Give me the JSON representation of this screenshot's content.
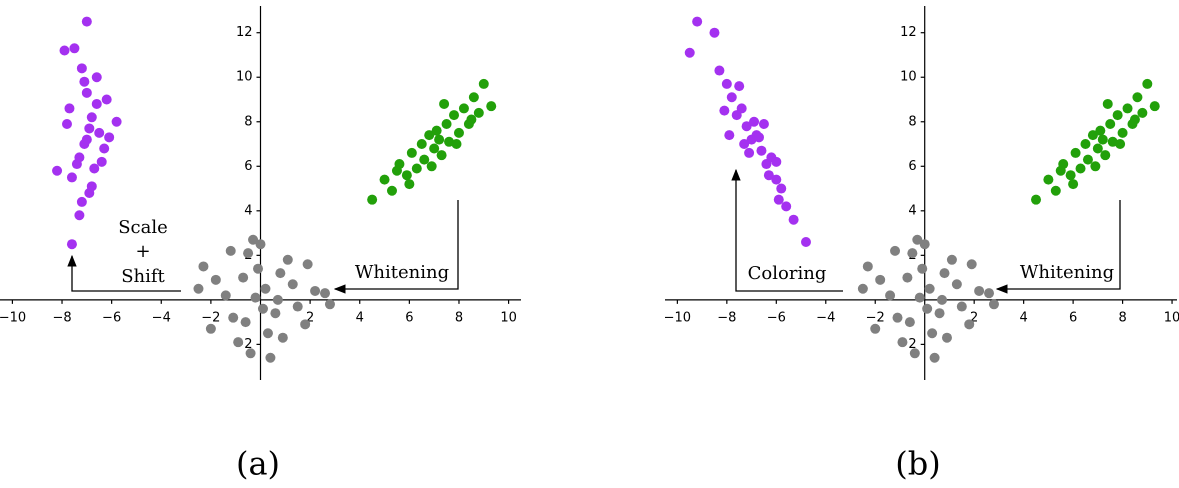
{
  "chart_data": [
    {
      "type": "scatter",
      "xlim": [
        -10.5,
        10.5
      ],
      "ylim": [
        -3.6,
        13.2
      ],
      "xticks": [
        {
          "value": -10,
          "label": "−10"
        },
        {
          "value": -8,
          "label": "−8"
        },
        {
          "value": -6,
          "label": "−6"
        },
        {
          "value": -4,
          "label": "−4"
        },
        {
          "value": -2,
          "label": "−2"
        },
        2,
        4,
        6,
        8,
        10
      ],
      "yticks": [
        {
          "value": -2,
          "label": "−2"
        },
        2,
        4,
        6,
        8,
        10,
        12
      ],
      "series": [
        {
          "color": "#a431f0",
          "x": [
            -7.1,
            -6.8,
            -7.4,
            -6.5,
            -7.0,
            -7.6,
            -6.3,
            -7.2,
            -6.9,
            -7.8,
            -6.6,
            -7.3,
            -6.1,
            -7.0,
            -7.5,
            -6.7,
            -8.2,
            -5.8,
            -7.1,
            -6.4,
            -7.7,
            -6.9,
            -7.2,
            -6.6,
            -7.6,
            -7.3,
            -6.2,
            -7.9,
            -7.0,
            -6.8
          ],
          "y": [
            7.0,
            8.2,
            6.1,
            7.5,
            9.3,
            5.5,
            6.8,
            10.4,
            4.8,
            7.9,
            8.8,
            6.4,
            7.3,
            12.5,
            11.3,
            5.9,
            5.8,
            8.0,
            9.8,
            6.2,
            8.6,
            7.7,
            4.4,
            10.0,
            2.5,
            3.8,
            9.0,
            11.2,
            7.2,
            5.1
          ]
        },
        {
          "color": "#22a00a",
          "x": [
            4.5,
            5.0,
            5.3,
            5.6,
            5.9,
            6.1,
            6.3,
            6.5,
            6.6,
            6.8,
            7.0,
            7.1,
            7.3,
            7.5,
            7.6,
            7.8,
            8.0,
            8.2,
            8.4,
            8.6,
            8.8,
            9.0,
            9.3,
            6.0,
            7.2,
            7.9,
            5.5,
            8.5,
            6.9,
            7.4
          ],
          "y": [
            4.5,
            5.4,
            4.9,
            6.1,
            5.6,
            6.6,
            5.9,
            7.0,
            6.3,
            7.4,
            6.8,
            7.6,
            6.5,
            7.9,
            7.1,
            8.3,
            7.5,
            8.6,
            7.9,
            9.1,
            8.4,
            9.7,
            8.7,
            5.2,
            7.2,
            7.0,
            5.8,
            8.1,
            6.0,
            8.8
          ]
        },
        {
          "color": "#808080",
          "x": [
            0.2,
            -1.1,
            0.8,
            -0.5,
            1.5,
            -1.8,
            0.3,
            -0.2,
            1.1,
            -0.9,
            2.2,
            -2.3,
            0.6,
            -0.4,
            1.8,
            -1.4,
            0.0,
            0.9,
            -0.7,
            2.6,
            -2.0,
            0.4,
            -0.1,
            1.3,
            -1.2,
            0.7,
            -0.6,
            1.9,
            -2.5,
            0.1,
            -0.3,
            2.8
          ],
          "y": [
            0.5,
            -0.8,
            1.2,
            2.1,
            -0.3,
            0.9,
            -1.5,
            0.1,
            1.8,
            -1.9,
            0.4,
            1.5,
            -0.6,
            -2.4,
            -1.1,
            0.2,
            2.5,
            -1.7,
            1.0,
            0.3,
            -1.3,
            -2.6,
            1.4,
            0.7,
            2.2,
            0.0,
            -1.0,
            1.6,
            0.5,
            -0.4,
            2.7,
            -0.2
          ]
        }
      ],
      "annotations": [
        "Scale",
        "+",
        "Shift",
        "Whitening"
      ],
      "caption": "(a)"
    },
    {
      "type": "scatter",
      "xlim": [
        -10.5,
        10.2
      ],
      "ylim": [
        -3.6,
        13.2
      ],
      "xticks": [
        {
          "value": -10,
          "label": "−10"
        },
        {
          "value": -8,
          "label": "−8"
        },
        {
          "value": -6,
          "label": "−6"
        },
        {
          "value": -4,
          "label": "−4"
        },
        {
          "value": -2,
          "label": "−2"
        },
        2,
        4,
        6,
        8,
        10
      ],
      "yticks": [
        {
          "value": -2,
          "label": "−2"
        },
        2,
        4,
        6,
        8,
        10,
        12
      ],
      "series": [
        {
          "color": "#a431f0",
          "x": [
            -9.2,
            -9.5,
            -8.5,
            -8.3,
            -8.0,
            -7.8,
            -7.6,
            -7.4,
            -7.2,
            -7.0,
            -6.8,
            -6.6,
            -6.4,
            -6.2,
            -6.0,
            -5.8,
            -5.6,
            -5.3,
            -7.5,
            -7.1,
            -6.5,
            -8.1,
            -6.9,
            -6.3,
            -7.9,
            -6.0,
            -5.9,
            -4.8,
            -7.3,
            -6.7
          ],
          "y": [
            12.5,
            11.1,
            12.0,
            10.3,
            9.7,
            9.1,
            8.3,
            8.6,
            7.8,
            7.2,
            7.4,
            6.7,
            6.1,
            6.4,
            5.4,
            5.0,
            4.2,
            3.6,
            9.6,
            6.6,
            7.9,
            8.5,
            8.0,
            5.6,
            7.4,
            6.2,
            4.5,
            2.6,
            7.0,
            7.3
          ]
        },
        {
          "color": "#22a00a",
          "x": [
            4.5,
            5.0,
            5.3,
            5.6,
            5.9,
            6.1,
            6.3,
            6.5,
            6.6,
            6.8,
            7.0,
            7.1,
            7.3,
            7.5,
            7.6,
            7.8,
            8.0,
            8.2,
            8.4,
            8.6,
            8.8,
            9.0,
            9.3,
            6.0,
            7.2,
            7.9,
            5.5,
            8.5,
            6.9,
            7.4
          ],
          "y": [
            4.5,
            5.4,
            4.9,
            6.1,
            5.6,
            6.6,
            5.9,
            7.0,
            6.3,
            7.4,
            6.8,
            7.6,
            6.5,
            7.9,
            7.1,
            8.3,
            7.5,
            8.6,
            7.9,
            9.1,
            8.4,
            9.7,
            8.7,
            5.2,
            7.2,
            7.0,
            5.8,
            8.1,
            6.0,
            8.8
          ]
        },
        {
          "color": "#808080",
          "x": [
            0.2,
            -1.1,
            0.8,
            -0.5,
            1.5,
            -1.8,
            0.3,
            -0.2,
            1.1,
            -0.9,
            2.2,
            -2.3,
            0.6,
            -0.4,
            1.8,
            -1.4,
            0.0,
            0.9,
            -0.7,
            2.6,
            -2.0,
            0.4,
            -0.1,
            1.3,
            -1.2,
            0.7,
            -0.6,
            1.9,
            -2.5,
            0.1,
            -0.3,
            2.8
          ],
          "y": [
            0.5,
            -0.8,
            1.2,
            2.1,
            -0.3,
            0.9,
            -1.5,
            0.1,
            1.8,
            -1.9,
            0.4,
            1.5,
            -0.6,
            -2.4,
            -1.1,
            0.2,
            2.5,
            -1.7,
            1.0,
            0.3,
            -1.3,
            -2.6,
            1.4,
            0.7,
            2.2,
            0.0,
            -1.0,
            1.6,
            0.5,
            -0.4,
            2.7,
            -0.2
          ]
        }
      ],
      "annotations": [
        "Coloring",
        "Whitening"
      ],
      "caption": "(b)"
    }
  ]
}
